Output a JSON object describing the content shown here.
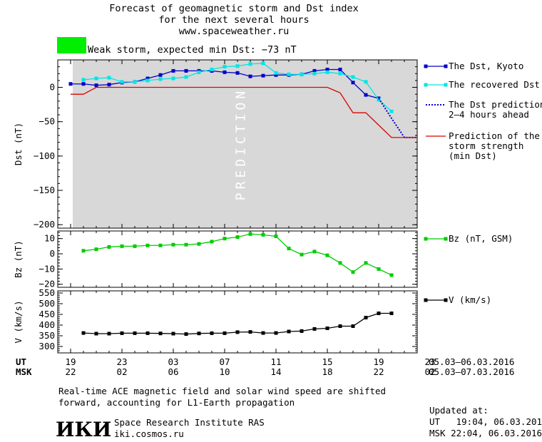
{
  "header": {
    "title_lines": [
      "Forecast of geomagnetic storm and Dst index",
      "for the next several hours",
      "www.spaceweather.ru"
    ],
    "status_color": "#00ee00",
    "status_text": "Weak storm, expected min Dst: −73 nT"
  },
  "chart_data": [
    {
      "type": "line",
      "id": "dst",
      "ylabel": "Dst (nT)",
      "ylim": [
        -205,
        40
      ],
      "yticks": [
        0,
        -50,
        -100,
        -150,
        -200
      ],
      "ytick_labels": [
        "0",
        "−50",
        "−100",
        "−150",
        "−200"
      ],
      "prediction_label": "PREDICTION",
      "prediction_band_x": [
        19,
        23
      ],
      "series": [
        {
          "name": "The Dst, Kyoto",
          "color": "#0000cc",
          "marker": "square",
          "x": [
            19,
            20,
            21,
            22,
            23,
            24,
            25,
            26,
            27,
            28,
            29,
            30,
            31,
            32,
            33,
            34,
            35,
            36,
            37,
            38,
            39,
            40,
            41,
            42,
            43
          ],
          "y": [
            5,
            5,
            3,
            4,
            7,
            8,
            13,
            18,
            24,
            24,
            24,
            24,
            22,
            21,
            16,
            17,
            18,
            18,
            19,
            24,
            26,
            26,
            7,
            -11,
            -16
          ]
        },
        {
          "name": "The recovered Dst",
          "color": "#00e5e5",
          "marker": "square",
          "x": [
            20,
            21,
            22,
            23,
            24,
            25,
            26,
            27,
            28,
            29,
            30,
            31,
            32,
            33,
            34,
            35,
            36,
            37,
            38,
            39,
            40,
            41,
            42,
            43,
            44
          ],
          "y": [
            11,
            13,
            14,
            8,
            8,
            10,
            12,
            13,
            15,
            22,
            26,
            30,
            31,
            34,
            35,
            21,
            19,
            19,
            20,
            22,
            20,
            15,
            8,
            -18,
            -35
          ]
        },
        {
          "name": "The Dst prediction\n2–4 hours ahead",
          "color": "#0000cc",
          "marker": "dotted",
          "x": [
            43,
            44,
            45,
            46
          ],
          "y": [
            -16,
            -45,
            -73,
            -73
          ]
        },
        {
          "name": "Prediction of the\nstorm strength\n(min Dst)",
          "color": "#dd0000",
          "marker": "none",
          "x": [
            19,
            20,
            21,
            39,
            40,
            41,
            42,
            43,
            44,
            46
          ],
          "y": [
            -10,
            -10,
            0,
            0,
            -8,
            -37,
            -37,
            -55,
            -73,
            -73
          ]
        }
      ]
    },
    {
      "type": "line",
      "id": "bz",
      "ylabel": "Bz (nT)",
      "ylim": [
        -22,
        15
      ],
      "yticks": [
        10,
        0,
        -10,
        -20
      ],
      "ytick_labels": [
        "10",
        "0",
        "−10",
        "−20"
      ],
      "series": [
        {
          "name": "Bz (nT, GSM)",
          "color": "#00cc00",
          "marker": "square",
          "x": [
            20,
            21,
            22,
            23,
            24,
            25,
            26,
            27,
            28,
            29,
            30,
            31,
            32,
            33,
            34,
            35,
            36,
            37,
            38,
            39,
            40,
            41,
            42,
            43,
            44
          ],
          "y": [
            2,
            3,
            4.5,
            5,
            5,
            5.5,
            5.5,
            6,
            6,
            6.5,
            8,
            10,
            11,
            13,
            12.5,
            11.5,
            3.5,
            -0.5,
            1.5,
            -1,
            -6,
            -12,
            -6,
            -10,
            -14
          ]
        }
      ]
    },
    {
      "type": "line",
      "id": "v",
      "ylabel": "V (km/s)",
      "ylim": [
        270,
        560
      ],
      "yticks": [
        550,
        500,
        450,
        400,
        350,
        300
      ],
      "ytick_labels": [
        "550",
        "500",
        "450",
        "400",
        "350",
        "300"
      ],
      "series": [
        {
          "name": "V (km/s)",
          "color": "#000000",
          "marker": "square",
          "x": [
            20,
            21,
            22,
            23,
            24,
            25,
            26,
            27,
            28,
            29,
            30,
            31,
            32,
            33,
            34,
            35,
            36,
            37,
            38,
            39,
            40,
            41,
            42,
            43,
            44
          ],
          "y": [
            363,
            360,
            360,
            362,
            362,
            362,
            361,
            360,
            358,
            361,
            362,
            362,
            367,
            368,
            363,
            363,
            370,
            372,
            382,
            385,
            395,
            395,
            435,
            455,
            455
          ]
        }
      ]
    }
  ],
  "time_axis": {
    "ut_label": "UT",
    "msk_label": "MSK",
    "ut_ticks": [
      "19",
      "23",
      "03",
      "07",
      "11",
      "15",
      "19",
      "23"
    ],
    "msk_ticks": [
      "22",
      "02",
      "06",
      "10",
      "14",
      "18",
      "22",
      "02"
    ],
    "ut_range": "05.03–06.03.2016",
    "msk_range": "05.03–07.03.2016"
  },
  "footer": {
    "note_lines": [
      "Real-time ACE magnetic field and solar wind speed are shifted",
      "forward, accounting for L1-Earth propagation"
    ],
    "logo_text": "ИКИ",
    "institute": "Space Research Institute RAS",
    "site": "iki.cosmos.ru",
    "updated_label": "Updated at:",
    "updated_ut": "UT   19:04, 06.03.2016",
    "updated_msk": "MSK 22:04, 06.03.2016"
  }
}
